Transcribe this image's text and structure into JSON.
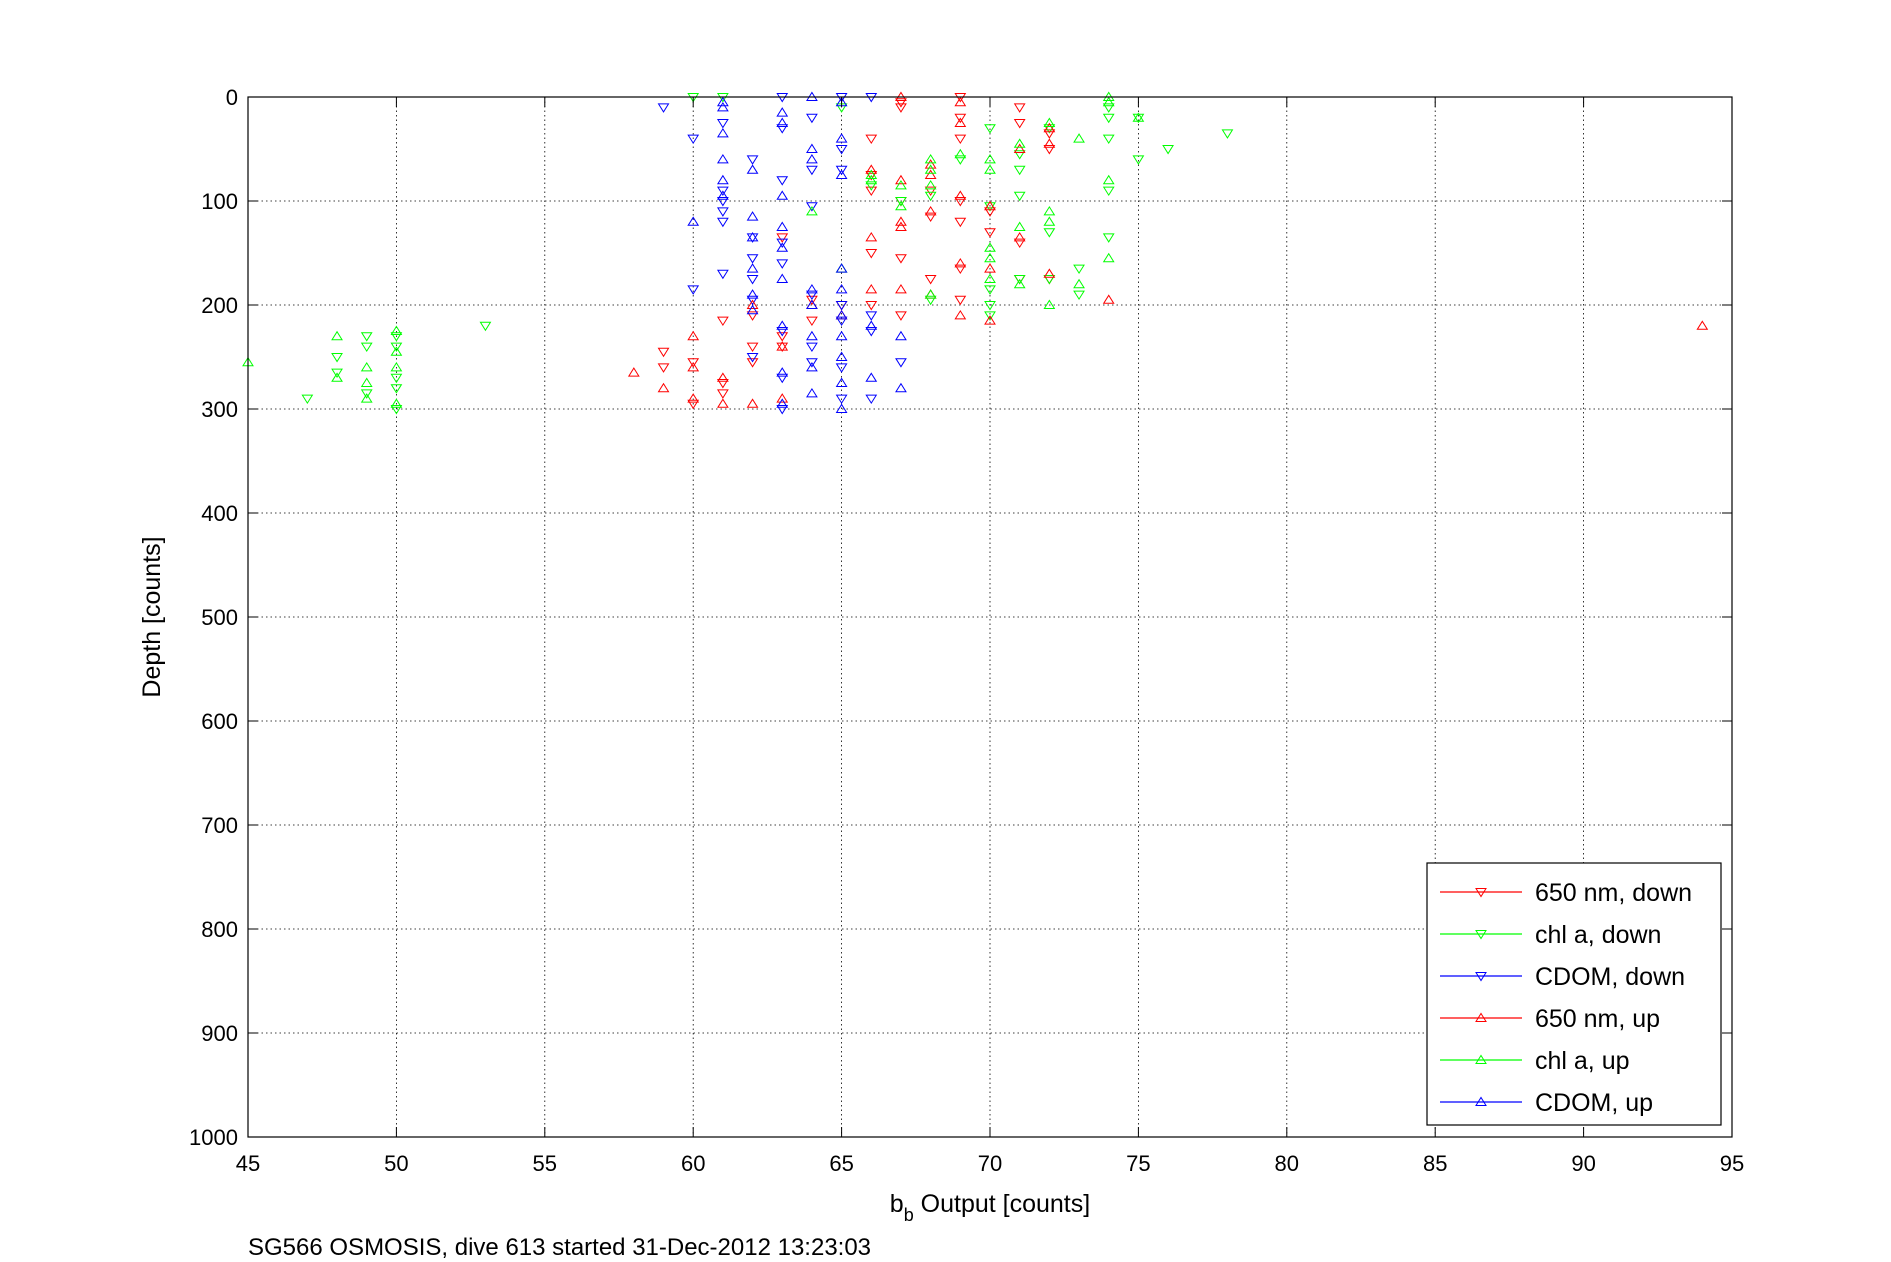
{
  "chart_data": {
    "type": "scatter",
    "xlabel_main": "b",
    "xlabel_sub": "b",
    "xlabel_rest": " Output [counts]",
    "ylabel": "Depth [counts]",
    "caption": "SG566 OSMOSIS, dive 613 started 31-Dec-2012 13:23:03",
    "xlim": [
      45,
      95
    ],
    "ylim": [
      0,
      1000
    ],
    "y_reversed": true,
    "grid": true,
    "legend_position": "bottom-right",
    "xticks": [
      "45",
      "50",
      "55",
      "60",
      "65",
      "70",
      "75",
      "80",
      "85",
      "90",
      "95"
    ],
    "yticks": [
      "0",
      "100",
      "200",
      "300",
      "400",
      "500",
      "600",
      "700",
      "800",
      "900",
      "1000"
    ],
    "series": [
      {
        "name": "650 nm, down",
        "color": "#ff0000",
        "marker": "triangle-down",
        "points": [
          [
            66,
            40
          ],
          [
            67,
            5
          ],
          [
            67,
            10
          ],
          [
            69,
            0
          ],
          [
            69,
            20
          ],
          [
            69,
            40
          ],
          [
            71,
            10
          ],
          [
            71,
            25
          ],
          [
            72,
            35
          ],
          [
            72,
            50
          ],
          [
            66,
            75
          ],
          [
            66,
            90
          ],
          [
            67,
            100
          ],
          [
            68,
            90
          ],
          [
            69,
            100
          ],
          [
            69,
            120
          ],
          [
            70,
            110
          ],
          [
            68,
            115
          ],
          [
            71,
            140
          ],
          [
            70,
            130
          ],
          [
            63,
            135
          ],
          [
            66,
            150
          ],
          [
            67,
            155
          ],
          [
            68,
            175
          ],
          [
            69,
            165
          ],
          [
            71,
            175
          ],
          [
            72,
            175
          ],
          [
            64,
            195
          ],
          [
            65,
            200
          ],
          [
            66,
            200
          ],
          [
            67,
            210
          ],
          [
            69,
            195
          ],
          [
            62,
            210
          ],
          [
            63,
            230
          ],
          [
            64,
            215
          ],
          [
            61,
            215
          ],
          [
            62,
            240
          ],
          [
            59,
            245
          ],
          [
            59,
            260
          ],
          [
            60,
            255
          ],
          [
            61,
            275
          ],
          [
            60,
            295
          ],
          [
            61,
            285
          ],
          [
            62,
            255
          ],
          [
            63,
            240
          ]
        ]
      },
      {
        "name": "chl a, down",
        "color": "#00ff00",
        "marker": "triangle-down",
        "points": [
          [
            60,
            0
          ],
          [
            61,
            0
          ],
          [
            65,
            10
          ],
          [
            70,
            30
          ],
          [
            71,
            55
          ],
          [
            72,
            30
          ],
          [
            74,
            10
          ],
          [
            74,
            20
          ],
          [
            75,
            20
          ],
          [
            76,
            50
          ],
          [
            78,
            35
          ],
          [
            75,
            60
          ],
          [
            71,
            70
          ],
          [
            74,
            40
          ],
          [
            69,
            60
          ],
          [
            66,
            85
          ],
          [
            67,
            100
          ],
          [
            68,
            95
          ],
          [
            70,
            105
          ],
          [
            71,
            95
          ],
          [
            72,
            130
          ],
          [
            74,
            90
          ],
          [
            74,
            135
          ],
          [
            73,
            165
          ],
          [
            72,
            175
          ],
          [
            71,
            175
          ],
          [
            70,
            185
          ],
          [
            70,
            200
          ],
          [
            73,
            190
          ],
          [
            68,
            195
          ],
          [
            70,
            210
          ],
          [
            48,
            250
          ],
          [
            48,
            265
          ],
          [
            49,
            240
          ],
          [
            49,
            230
          ],
          [
            49,
            285
          ],
          [
            50,
            230
          ],
          [
            50,
            240
          ],
          [
            50,
            270
          ],
          [
            50,
            280
          ],
          [
            50,
            300
          ],
          [
            47,
            290
          ],
          [
            53,
            220
          ]
        ]
      },
      {
        "name": "CDOM, down",
        "color": "#0000ff",
        "marker": "triangle-down",
        "points": [
          [
            59,
            10
          ],
          [
            60,
            40
          ],
          [
            61,
            25
          ],
          [
            63,
            0
          ],
          [
            64,
            20
          ],
          [
            65,
            0
          ],
          [
            66,
            0
          ],
          [
            63,
            30
          ],
          [
            61,
            90
          ],
          [
            61,
            100
          ],
          [
            61,
            110
          ],
          [
            61,
            120
          ],
          [
            62,
            60
          ],
          [
            63,
            80
          ],
          [
            64,
            70
          ],
          [
            65,
            70
          ],
          [
            65,
            50
          ],
          [
            64,
            105
          ],
          [
            62,
            135
          ],
          [
            62,
            155
          ],
          [
            63,
            140
          ],
          [
            63,
            160
          ],
          [
            62,
            175
          ],
          [
            62,
            195
          ],
          [
            61,
            170
          ],
          [
            60,
            185
          ],
          [
            64,
            190
          ],
          [
            65,
            200
          ],
          [
            66,
            210
          ],
          [
            66,
            225
          ],
          [
            65,
            215
          ],
          [
            63,
            225
          ],
          [
            64,
            255
          ],
          [
            63,
            270
          ],
          [
            62,
            250
          ],
          [
            64,
            240
          ],
          [
            65,
            260
          ],
          [
            65,
            290
          ],
          [
            67,
            255
          ],
          [
            66,
            290
          ],
          [
            63,
            300
          ]
        ]
      },
      {
        "name": "650 nm, up",
        "color": "#ff0000",
        "marker": "triangle-up",
        "points": [
          [
            67,
            0
          ],
          [
            69,
            5
          ],
          [
            69,
            25
          ],
          [
            71,
            50
          ],
          [
            72,
            45
          ],
          [
            72,
            30
          ],
          [
            66,
            70
          ],
          [
            67,
            80
          ],
          [
            68,
            65
          ],
          [
            68,
            75
          ],
          [
            69,
            95
          ],
          [
            70,
            105
          ],
          [
            67,
            120
          ],
          [
            68,
            110
          ],
          [
            66,
            135
          ],
          [
            67,
            125
          ],
          [
            69,
            160
          ],
          [
            70,
            165
          ],
          [
            71,
            135
          ],
          [
            72,
            170
          ],
          [
            74,
            195
          ],
          [
            67,
            185
          ],
          [
            66,
            185
          ],
          [
            64,
            200
          ],
          [
            65,
            210
          ],
          [
            69,
            210
          ],
          [
            70,
            215
          ],
          [
            68,
            190
          ],
          [
            62,
            200
          ],
          [
            63,
            240
          ],
          [
            60,
            230
          ],
          [
            61,
            270
          ],
          [
            62,
            295
          ],
          [
            60,
            260
          ],
          [
            59,
            280
          ],
          [
            58,
            265
          ],
          [
            60,
            290
          ],
          [
            61,
            295
          ],
          [
            63,
            290
          ],
          [
            94,
            220
          ]
        ]
      },
      {
        "name": "chl a, up",
        "color": "#00ff00",
        "marker": "triangle-up",
        "points": [
          [
            74,
            0
          ],
          [
            74,
            5
          ],
          [
            75,
            20
          ],
          [
            72,
            25
          ],
          [
            73,
            40
          ],
          [
            70,
            60
          ],
          [
            71,
            45
          ],
          [
            70,
            70
          ],
          [
            69,
            55
          ],
          [
            66,
            80
          ],
          [
            66,
            75
          ],
          [
            67,
            85
          ],
          [
            68,
            60
          ],
          [
            68,
            70
          ],
          [
            67,
            105
          ],
          [
            68,
            85
          ],
          [
            70,
            145
          ],
          [
            70,
            155
          ],
          [
            71,
            125
          ],
          [
            72,
            110
          ],
          [
            72,
            120
          ],
          [
            74,
            80
          ],
          [
            74,
            155
          ],
          [
            73,
            180
          ],
          [
            72,
            200
          ],
          [
            71,
            180
          ],
          [
            70,
            175
          ],
          [
            68,
            190
          ],
          [
            65,
            165
          ],
          [
            64,
            110
          ],
          [
            45,
            255
          ],
          [
            48,
            230
          ],
          [
            48,
            270
          ],
          [
            49,
            260
          ],
          [
            49,
            275
          ],
          [
            49,
            290
          ],
          [
            50,
            225
          ],
          [
            50,
            245
          ],
          [
            50,
            260
          ],
          [
            50,
            295
          ]
        ]
      },
      {
        "name": "CDOM, up",
        "color": "#0000ff",
        "marker": "triangle-up",
        "points": [
          [
            61,
            5
          ],
          [
            61,
            10
          ],
          [
            63,
            15
          ],
          [
            64,
            0
          ],
          [
            65,
            5
          ],
          [
            61,
            35
          ],
          [
            61,
            60
          ],
          [
            62,
            70
          ],
          [
            63,
            25
          ],
          [
            64,
            50
          ],
          [
            64,
            60
          ],
          [
            65,
            40
          ],
          [
            65,
            75
          ],
          [
            63,
            95
          ],
          [
            61,
            80
          ],
          [
            61,
            95
          ],
          [
            60,
            120
          ],
          [
            62,
            115
          ],
          [
            62,
            135
          ],
          [
            62,
            165
          ],
          [
            63,
            125
          ],
          [
            63,
            145
          ],
          [
            63,
            175
          ],
          [
            62,
            190
          ],
          [
            62,
            205
          ],
          [
            64,
            200
          ],
          [
            64,
            185
          ],
          [
            65,
            165
          ],
          [
            65,
            185
          ],
          [
            65,
            210
          ],
          [
            66,
            220
          ],
          [
            65,
            230
          ],
          [
            63,
            220
          ],
          [
            64,
            230
          ],
          [
            64,
            260
          ],
          [
            63,
            265
          ],
          [
            65,
            250
          ],
          [
            65,
            275
          ],
          [
            66,
            270
          ],
          [
            64,
            285
          ],
          [
            65,
            300
          ],
          [
            67,
            280
          ],
          [
            67,
            230
          ],
          [
            63,
            295
          ]
        ]
      }
    ]
  }
}
